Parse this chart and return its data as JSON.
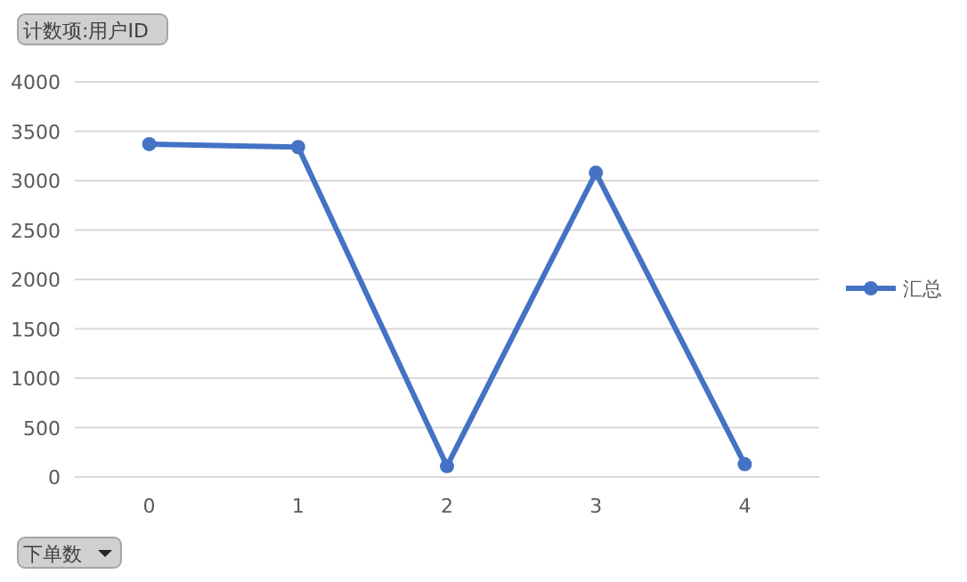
{
  "chart_data": {
    "type": "line",
    "title": "计数项:用户ID",
    "xlabel": "下单数",
    "categories": [
      "0",
      "1",
      "2",
      "3",
      "4"
    ],
    "series": [
      {
        "name": "汇总",
        "color": "#4472c4",
        "values": [
          3370,
          3340,
          110,
          3080,
          130
        ]
      }
    ],
    "ylim": [
      0,
      4000
    ],
    "yticks": [
      0,
      500,
      1000,
      1500,
      2000,
      2500,
      3000,
      3500,
      4000
    ],
    "grid": "y",
    "legend": "right",
    "marker": "circle",
    "line_style": "solid"
  }
}
